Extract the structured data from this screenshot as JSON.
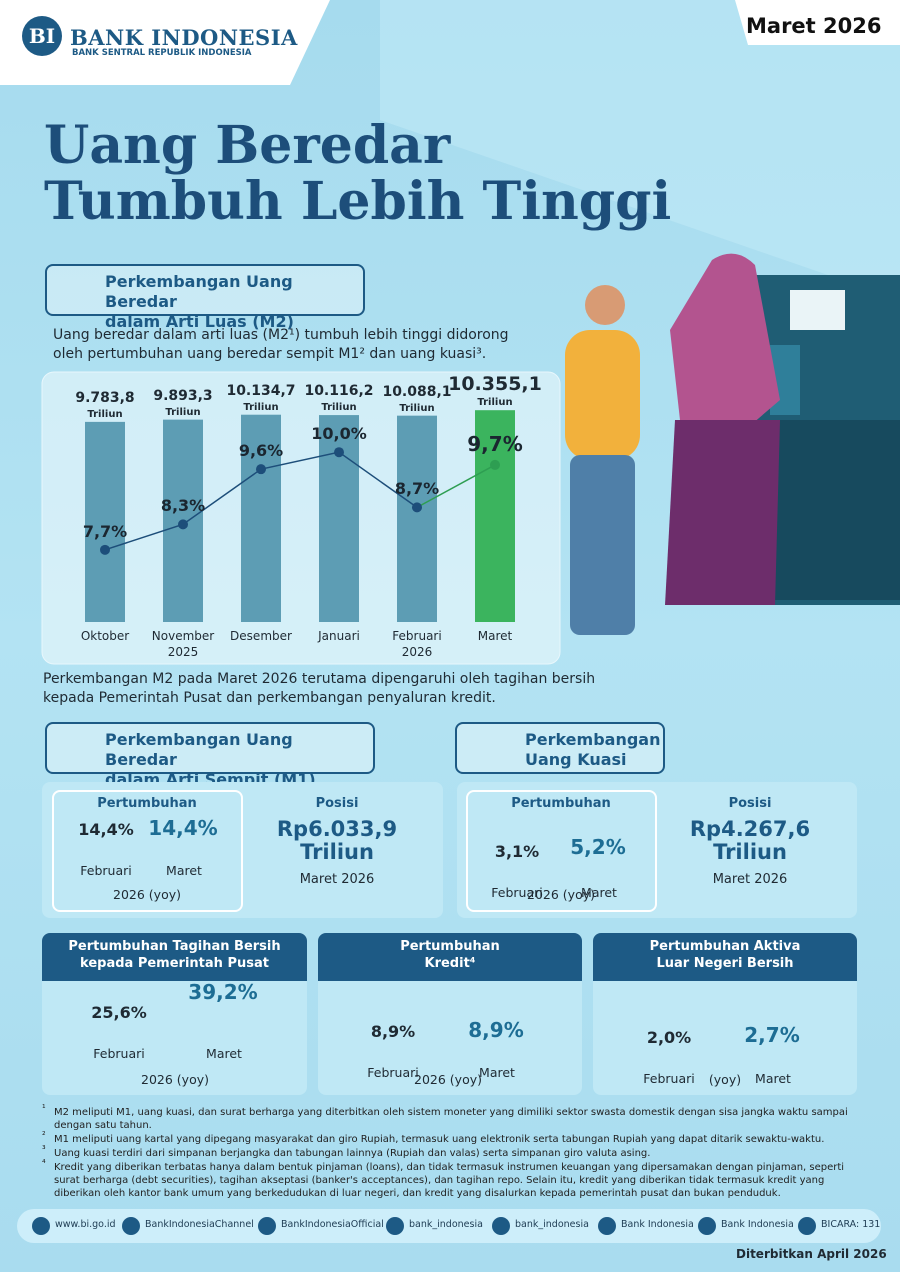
{
  "header": {
    "logo_name": "BANK INDONESIA",
    "logo_subtitle": "BANK SENTRAL REPUBLIK INDONESIA",
    "period": "Maret 2026"
  },
  "title": "Uang Beredar\nTumbuh Lebih Tinggi",
  "m2_section": {
    "heading": "Perkembangan Uang Beredar\ndalam Arti Luas (M2)",
    "intro": "Uang beredar dalam arti luas (M2¹) tumbuh lebih tinggi didorong oleh pertumbuhan uang beredar sempit M1² dan uang kuasi³.",
    "note": "Perkembangan M2 pada Maret 2026 terutama dipengaruhi oleh tagihan bersih kepada Pemerintah Pusat dan perkembangan penyaluran kredit."
  },
  "chart_data": {
    "type": "bar",
    "categories": [
      "Oktober",
      "November\n2025",
      "Desember",
      "Januari",
      "Februari\n2026",
      "Maret"
    ],
    "unit": "Triliun",
    "ylim": [
      0,
      11000
    ],
    "y2lim": [
      6,
      11.3
    ],
    "series": [
      {
        "type": "bar",
        "color": "#5d9db4",
        "highlight_color": "#3bb45e",
        "values": [
          9783.8,
          9893.3,
          10134.7,
          10116.2,
          10088.1,
          10355.1
        ],
        "value_labels": [
          "9.783,8",
          "9.893,3",
          "10.134,7",
          "10.116,2",
          "10.088,1",
          "10.355,1"
        ]
      },
      {
        "type": "line",
        "axis": "y2",
        "color": "#1d4e7a",
        "highlight_color": "#2e9e52",
        "values": [
          7.7,
          8.3,
          9.6,
          10.0,
          8.7,
          9.7
        ],
        "value_labels": [
          "7,7%",
          "8,3%",
          "9,6%",
          "10,0%",
          "8,7%",
          "9,7%"
        ]
      }
    ]
  },
  "m1_section": {
    "heading": "Perkembangan Uang Beredar\ndalam Arti Sempit (M1)",
    "growth": {
      "label": "Pertumbuhan",
      "categories": [
        "Februari",
        "Maret"
      ],
      "values": [
        14.4,
        14.4
      ],
      "value_labels": [
        "14,4%",
        "14,4%"
      ],
      "period": "2026 (yoy)"
    },
    "position": {
      "label": "Posisi",
      "value": "Rp6.033,9\nTriliun",
      "period": "Maret 2026"
    }
  },
  "quasi_section": {
    "heading": "Perkembangan\nUang Kuasi",
    "growth": {
      "label": "Pertumbuhan",
      "categories": [
        "Februari",
        "Maret"
      ],
      "values": [
        3.1,
        5.2
      ],
      "value_labels": [
        "3,1%",
        "5,2%"
      ],
      "period": "2026 (yoy)"
    },
    "position": {
      "label": "Posisi",
      "value": "Rp4.267,6\nTriliun",
      "period": "Maret 2026"
    }
  },
  "indicators": [
    {
      "title": "Pertumbuhan Tagihan Bersih\nkepada Pemerintah Pusat",
      "categories": [
        "Februari",
        "Maret"
      ],
      "values": [
        25.6,
        39.2
      ],
      "value_labels": [
        "25,6%",
        "39,2%"
      ],
      "period": "2026 (yoy)"
    },
    {
      "title": "Pertumbuhan\nKredit⁴",
      "categories": [
        "Februari",
        "Maret"
      ],
      "values": [
        8.9,
        8.9
      ],
      "value_labels": [
        "8,9%",
        "8,9%"
      ],
      "period": "2026 (yoy)"
    },
    {
      "title": "Pertumbuhan Aktiva\nLuar Negeri Bersih",
      "categories": [
        "Februari",
        "Maret"
      ],
      "values": [
        2.0,
        2.7
      ],
      "value_labels": [
        "2,0%",
        "2,7%"
      ],
      "period": "(yoy)"
    }
  ],
  "footnotes": [
    {
      "marker": "¹",
      "text": "M2 meliputi M1, uang kuasi, dan surat berharga yang diterbitkan oleh sistem moneter yang dimiliki sektor swasta domestik dengan sisa jangka waktu sampai dengan satu tahun."
    },
    {
      "marker": "²",
      "text": "M1 meliputi uang kartal yang dipegang masyarakat dan giro Rupiah, termasuk uang elektronik serta tabungan Rupiah yang dapat ditarik sewaktu-waktu."
    },
    {
      "marker": "³",
      "text": "Uang kuasi terdiri dari simpanan berjangka dan tabungan lainnya (Rupiah dan valas) serta simpanan giro valuta asing."
    },
    {
      "marker": "⁴",
      "text": "Kredit yang diberikan terbatas hanya dalam bentuk pinjaman (loans), dan tidak termasuk instrumen keuangan yang dipersamakan dengan pinjaman, seperti surat berharga (debt securities), tagihan akseptasi (banker's acceptances), dan tagihan repo. Selain itu, kredit yang diberikan tidak termasuk kredit yang diberikan oleh kantor bank umum yang berkedudukan di luar negeri, dan kredit yang disalurkan kepada pemerintah pusat dan bukan penduduk."
    }
  ],
  "social": [
    "www.bi.go.id",
    "BankIndonesiaChannel",
    "BankIndonesiaOfficial",
    "bank_indonesia",
    "bank_indonesia",
    "Bank Indonesia",
    "Bank Indonesia",
    "BICARA: 131"
  ],
  "published": "Diterbitkan April 2026"
}
